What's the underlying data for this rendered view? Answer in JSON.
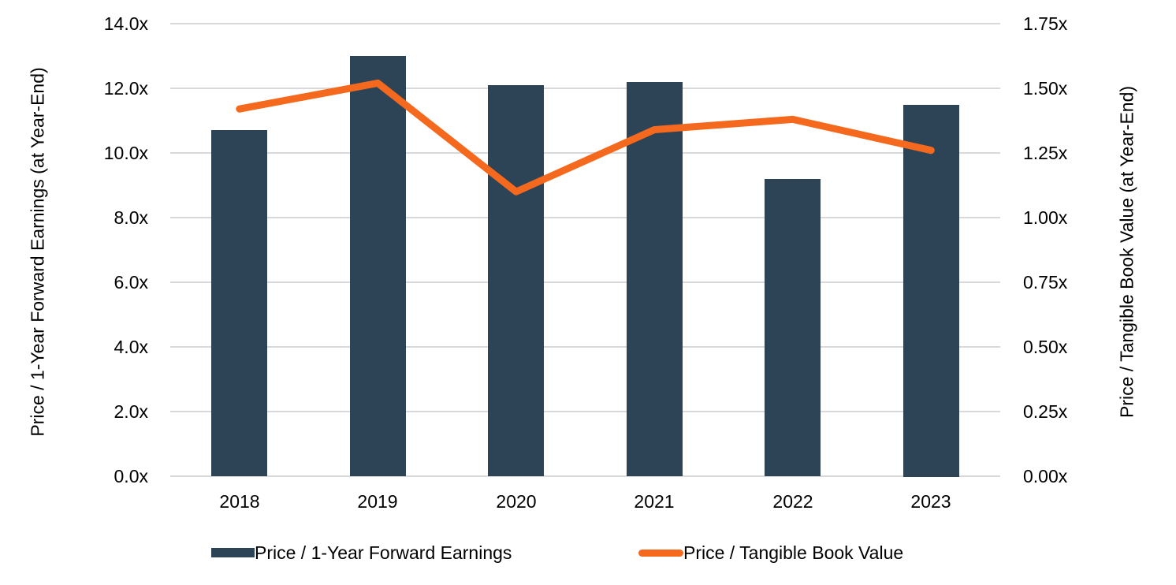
{
  "chart_data": {
    "type": "combo-bar-line-dual-axis",
    "categories": [
      "2018",
      "2019",
      "2020",
      "2021",
      "2022",
      "2023"
    ],
    "series": [
      {
        "name": "Price / 1-Year Forward Earnings",
        "type": "bar",
        "axis": "left",
        "color": "#2d4356",
        "values": [
          10.7,
          13.0,
          12.1,
          12.2,
          9.2,
          11.5
        ]
      },
      {
        "name": "Price / Tangible Book Value",
        "type": "line",
        "axis": "right",
        "color": "#f4691e",
        "values": [
          1.42,
          1.52,
          1.1,
          1.34,
          1.38,
          1.26
        ]
      }
    ],
    "left_axis": {
      "label": "Price / 1-Year Forward Earnings (at Year-End)",
      "min": 0,
      "max": 14,
      "tick_step": 2,
      "tick_labels": [
        "0.0x",
        "2.0x",
        "4.0x",
        "6.0x",
        "8.0x",
        "10.0x",
        "12.0x",
        "14.0x"
      ],
      "tick_values": [
        0,
        2,
        4,
        6,
        8,
        10,
        12,
        14
      ]
    },
    "right_axis": {
      "label": "Price / Tangible Book Value (at Year-End)",
      "min": 0,
      "max": 1.75,
      "tick_step": 0.25,
      "tick_labels": [
        "0.00x",
        "0.25x",
        "0.50x",
        "0.75x",
        "1.00x",
        "1.25x",
        "1.50x",
        "1.75x"
      ],
      "tick_values": [
        0,
        0.25,
        0.5,
        0.75,
        1.0,
        1.25,
        1.5,
        1.75
      ]
    },
    "grid": true,
    "gridline_color": "#d9d9d9",
    "legend_position": "bottom",
    "legend": [
      {
        "label": "Price / 1-Year Forward Earnings",
        "swatch": "bar",
        "color": "#2d4356"
      },
      {
        "label": "Price / Tangible Book Value",
        "swatch": "line",
        "color": "#f4691e"
      }
    ]
  }
}
